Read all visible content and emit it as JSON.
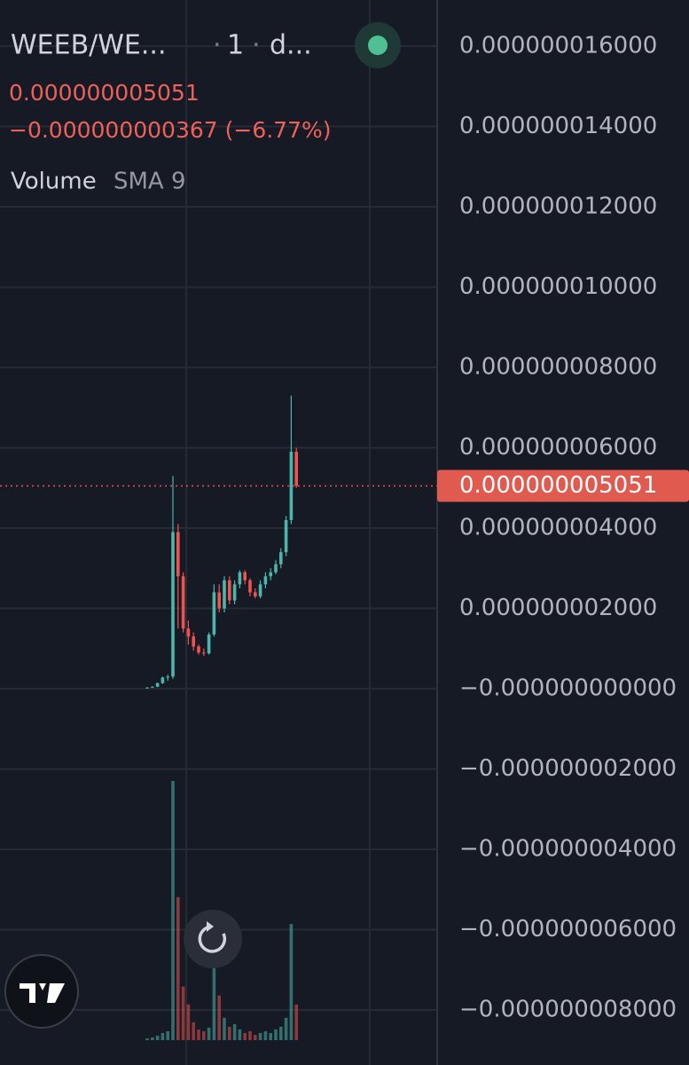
{
  "chart_data": {
    "type": "candlestick",
    "symbol": "WEEB/WE...",
    "interval": "1",
    "exchange": "d...",
    "price": "0.000000005051",
    "change": "−0.000000000367 (−6.77%)",
    "indicator": "Volume",
    "indicator_param": "SMA 9",
    "up_color": "#4db6ac",
    "down_color": "#ef5350",
    "ylim": [
      -9.37e-09,
      1.715e-08
    ],
    "yticks": [
      {
        "value": 1.6e-08,
        "label": "0.000000016000"
      },
      {
        "value": 1.4e-08,
        "label": "0.000000014000"
      },
      {
        "value": 1.2e-08,
        "label": "0.000000012000"
      },
      {
        "value": 1e-08,
        "label": "0.000000010000"
      },
      {
        "value": 8e-09,
        "label": "0.000000008000"
      },
      {
        "value": 6e-09,
        "label": "0.000000006000"
      },
      {
        "value": 4e-09,
        "label": "0.000000004000"
      },
      {
        "value": 2e-09,
        "label": "0.000000002000"
      },
      {
        "value": 0,
        "label": "−0.000000000000"
      },
      {
        "value": -2e-09,
        "label": "−0.000000002000"
      },
      {
        "value": -4e-09,
        "label": "−0.000000004000"
      },
      {
        "value": -6e-09,
        "label": "−0.000000006000"
      },
      {
        "value": -8e-09,
        "label": "−0.000000008000"
      }
    ],
    "grid": true,
    "last_value": 5.051e-09,
    "last_value_label": "0.000000005051",
    "open": [
      2e-11,
      3e-11,
      5e-11,
      1.4e-10,
      2.8e-10,
      3e-10,
      3.9e-09,
      2.8e-09,
      1.5e-09,
      1.3e-09,
      1.05e-09,
      9e-10,
      8.8e-10,
      1.35e-09,
      2.4e-09,
      2e-09,
      2.7e-09,
      2.2e-09,
      2.6e-09,
      2.9e-09,
      2.7e-09,
      2.4e-09,
      2.3e-09,
      2.6e-09,
      2.8e-09,
      2.9e-09,
      3.1e-09,
      3.4e-09,
      4.2e-09,
      5.9e-09
    ],
    "high": [
      4e-11,
      6e-11,
      1.5e-10,
      3e-10,
      3.5e-10,
      5.3e-09,
      4.1e-09,
      2.9e-09,
      1.7e-09,
      1.4e-09,
      1.1e-09,
      1e-09,
      1.4e-09,
      2.6e-09,
      2.6e-09,
      2.8e-09,
      2.8e-09,
      2.7e-09,
      2.95e-09,
      2.95e-09,
      2.75e-09,
      2.5e-09,
      2.7e-09,
      2.9e-09,
      3e-09,
      3.2e-09,
      3.5e-09,
      4.3e-09,
      7.3e-09,
      6e-09
    ],
    "low": [
      0.0,
      2e-11,
      4e-11,
      1.2e-10,
      2e-10,
      2.5e-10,
      1.5e-09,
      1.4e-09,
      1.1e-09,
      9.5e-10,
      8.5e-10,
      8.2e-10,
      8.5e-10,
      1.3e-09,
      1.9e-09,
      1.9e-09,
      2.1e-09,
      2.1e-09,
      2.5e-09,
      2.6e-09,
      2.3e-09,
      2.25e-09,
      2.25e-09,
      2.5e-09,
      2.7e-09,
      2.85e-09,
      3e-09,
      3.3e-09,
      4.1e-09,
      5e-09
    ],
    "close": [
      3e-11,
      5e-11,
      1.4e-10,
      2.8e-10,
      3e-10,
      3.9e-09,
      2.8e-09,
      1.5e-09,
      1.3e-09,
      1.05e-09,
      9e-10,
      8.8e-10,
      1.35e-09,
      2.4e-09,
      2e-09,
      2.7e-09,
      2.2e-09,
      2.6e-09,
      2.9e-09,
      2.7e-09,
      2.4e-09,
      2.3e-09,
      2.6e-09,
      2.8e-09,
      2.9e-09,
      3.1e-09,
      3.4e-09,
      4.2e-09,
      5.9e-09,
      5.051e-09
    ],
    "volume": [
      2,
      3,
      5,
      8,
      10,
      290,
      160,
      60,
      40,
      20,
      12,
      10,
      14,
      110,
      50,
      25,
      15,
      18,
      12,
      8,
      10,
      6,
      8,
      10,
      8,
      12,
      15,
      25,
      130,
      40
    ]
  }
}
